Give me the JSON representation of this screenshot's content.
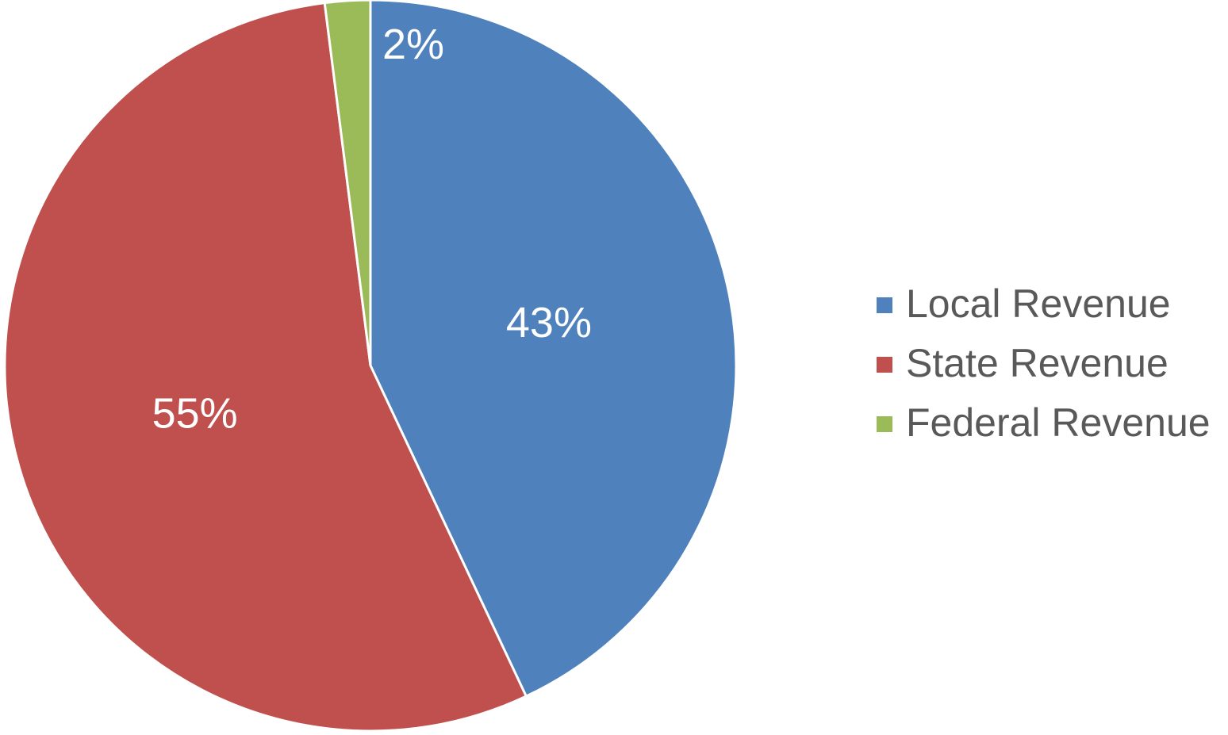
{
  "chart_data": {
    "type": "pie",
    "categories": [
      "Local Revenue",
      "State Revenue",
      "Federal Revenue"
    ],
    "values": [
      43,
      55,
      2
    ],
    "value_labels": [
      "43%",
      "55%",
      "2%"
    ],
    "colors": [
      "#4f81bd",
      "#c0504d",
      "#9bbb59"
    ],
    "legend": "right"
  }
}
